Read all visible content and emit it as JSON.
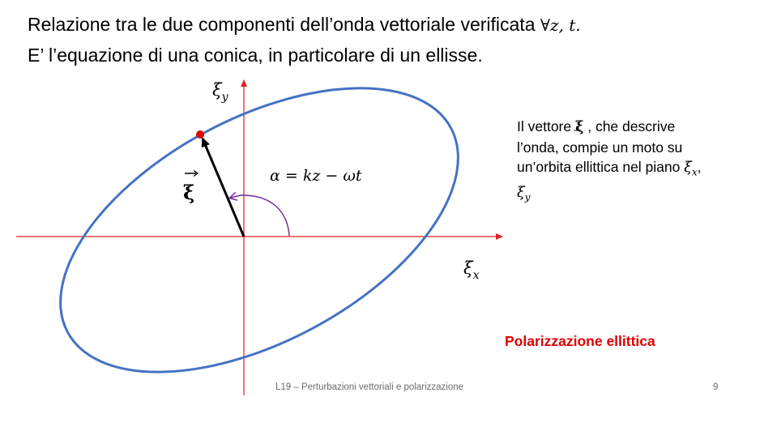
{
  "heading": {
    "line1_text": "Relazione tra le due componenti dell’onda vettoriale verificata ",
    "line1_math": "∀z, t.",
    "line2": "E’ l’equazione di una conica, in particolare di un ellisse."
  },
  "diagram": {
    "y_axis_label": "ξ",
    "y_axis_sub": "y",
    "x_axis_label": "ξ",
    "x_axis_sub": "x",
    "vector_label": "ξ",
    "angle_label": "α = kz − ωt",
    "colors": {
      "ellipse": "#4472c4",
      "axes": "#e02020",
      "angle_arc": "#7030a0",
      "vector": "#000000",
      "tip_point": "#e00000"
    }
  },
  "description": {
    "prefix": "Il vettore ",
    "vector_symbol": "ξ",
    "rest": " , che descrive l’onda, compie un moto su un’orbita ellittica nel piano ",
    "sym1": "ξ",
    "sym1_sub": "x",
    "separator": ", ",
    "sym2": "ξ",
    "sym2_sub": "y"
  },
  "badge": "Polarizzazione ellittica",
  "footer": {
    "text": "L19 – Perturbazioni vettoriali e polarizzazione",
    "page": "9"
  }
}
